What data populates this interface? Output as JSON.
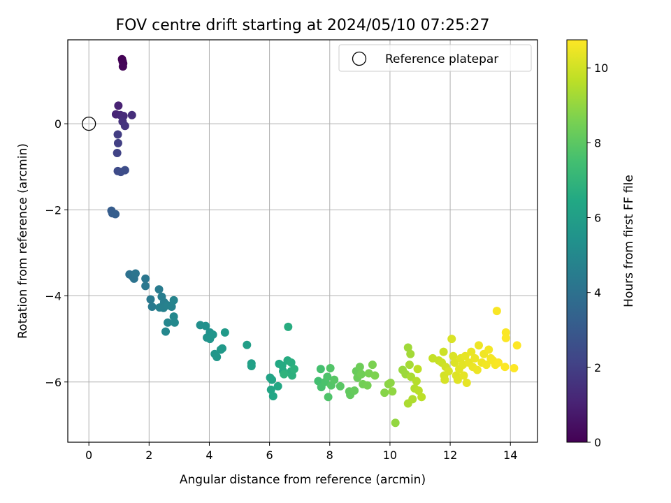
{
  "chart_data": {
    "type": "scatter",
    "title": "FOV centre drift starting at 2024/05/10 07:25:27",
    "xlabel": "Angular distance from reference (arcmin)",
    "ylabel": "Rotation from reference (arcmin)",
    "colorbar_label": "Hours from first FF file",
    "xlim": [
      -0.7,
      14.9
    ],
    "ylim": [
      -7.4,
      1.95
    ],
    "clim": [
      0,
      10.75
    ],
    "x_ticks": [
      0,
      2,
      4,
      6,
      8,
      10,
      12,
      14
    ],
    "y_ticks": [
      -6,
      -4,
      -2,
      0
    ],
    "colorbar_ticks": [
      0,
      2,
      4,
      6,
      8,
      10
    ],
    "grid": true,
    "colormap": "viridis",
    "legend": {
      "position": "top-right",
      "entries": [
        "Reference platepar"
      ]
    },
    "reference_point": {
      "x": 0,
      "y": 0
    },
    "points": [
      {
        "x": 1.1,
        "y": 1.5,
        "t": 0.0
      },
      {
        "x": 1.12,
        "y": 1.45,
        "t": 0.05
      },
      {
        "x": 1.14,
        "y": 1.4,
        "t": 0.1
      },
      {
        "x": 1.13,
        "y": 1.33,
        "t": 0.15
      },
      {
        "x": 0.98,
        "y": 0.42,
        "t": 1.0
      },
      {
        "x": 0.9,
        "y": 0.22,
        "t": 1.1
      },
      {
        "x": 1.05,
        "y": 0.2,
        "t": 1.2
      },
      {
        "x": 1.15,
        "y": 0.18,
        "t": 1.3
      },
      {
        "x": 1.43,
        "y": 0.2,
        "t": 1.4
      },
      {
        "x": 1.12,
        "y": 0.05,
        "t": 1.5
      },
      {
        "x": 1.2,
        "y": -0.05,
        "t": 1.6
      },
      {
        "x": 0.96,
        "y": -0.25,
        "t": 1.9
      },
      {
        "x": 0.97,
        "y": -0.45,
        "t": 2.0
      },
      {
        "x": 0.94,
        "y": -0.68,
        "t": 2.1
      },
      {
        "x": 0.96,
        "y": -1.1,
        "t": 2.4
      },
      {
        "x": 1.06,
        "y": -1.12,
        "t": 2.45
      },
      {
        "x": 1.2,
        "y": -1.08,
        "t": 2.5
      },
      {
        "x": 0.75,
        "y": -2.02,
        "t": 3.1
      },
      {
        "x": 0.78,
        "y": -2.08,
        "t": 3.15
      },
      {
        "x": 0.88,
        "y": -2.1,
        "t": 3.2
      },
      {
        "x": 1.35,
        "y": -3.5,
        "t": 4.0
      },
      {
        "x": 1.45,
        "y": -3.55,
        "t": 4.05
      },
      {
        "x": 1.5,
        "y": -3.6,
        "t": 4.1
      },
      {
        "x": 1.55,
        "y": -3.48,
        "t": 4.15
      },
      {
        "x": 1.88,
        "y": -3.6,
        "t": 4.2
      },
      {
        "x": 1.88,
        "y": -3.77,
        "t": 4.25
      },
      {
        "x": 2.05,
        "y": -4.08,
        "t": 4.35
      },
      {
        "x": 2.1,
        "y": -4.25,
        "t": 4.4
      },
      {
        "x": 2.33,
        "y": -3.85,
        "t": 4.45
      },
      {
        "x": 2.42,
        "y": -4.02,
        "t": 4.5
      },
      {
        "x": 2.5,
        "y": -4.15,
        "t": 4.55
      },
      {
        "x": 2.35,
        "y": -4.27,
        "t": 4.6
      },
      {
        "x": 2.48,
        "y": -4.28,
        "t": 4.65
      },
      {
        "x": 2.62,
        "y": -4.22,
        "t": 4.7
      },
      {
        "x": 2.75,
        "y": -4.25,
        "t": 4.75
      },
      {
        "x": 2.82,
        "y": -4.1,
        "t": 4.8
      },
      {
        "x": 2.62,
        "y": -4.62,
        "t": 4.9
      },
      {
        "x": 2.55,
        "y": -4.83,
        "t": 4.95
      },
      {
        "x": 2.82,
        "y": -4.48,
        "t": 5.0
      },
      {
        "x": 2.85,
        "y": -4.62,
        "t": 5.05
      },
      {
        "x": 3.7,
        "y": -4.68,
        "t": 5.3
      },
      {
        "x": 3.88,
        "y": -4.7,
        "t": 5.35
      },
      {
        "x": 4.02,
        "y": -4.85,
        "t": 5.4
      },
      {
        "x": 3.92,
        "y": -4.97,
        "t": 5.45
      },
      {
        "x": 4.02,
        "y": -5.0,
        "t": 5.5
      },
      {
        "x": 4.12,
        "y": -4.9,
        "t": 5.55
      },
      {
        "x": 4.18,
        "y": -5.35,
        "t": 5.6
      },
      {
        "x": 4.25,
        "y": -5.42,
        "t": 5.65
      },
      {
        "x": 4.38,
        "y": -5.25,
        "t": 5.7
      },
      {
        "x": 4.43,
        "y": -5.22,
        "t": 5.75
      },
      {
        "x": 4.52,
        "y": -4.85,
        "t": 5.8
      },
      {
        "x": 5.25,
        "y": -5.14,
        "t": 6.0
      },
      {
        "x": 5.4,
        "y": -5.57,
        "t": 6.05
      },
      {
        "x": 5.4,
        "y": -5.63,
        "t": 6.1
      },
      {
        "x": 6.02,
        "y": -5.9,
        "t": 6.2
      },
      {
        "x": 6.08,
        "y": -5.95,
        "t": 6.25
      },
      {
        "x": 6.05,
        "y": -6.18,
        "t": 6.3
      },
      {
        "x": 6.12,
        "y": -6.33,
        "t": 6.35
      },
      {
        "x": 6.28,
        "y": -6.1,
        "t": 6.4
      },
      {
        "x": 6.32,
        "y": -5.58,
        "t": 6.45
      },
      {
        "x": 6.45,
        "y": -5.75,
        "t": 6.5
      },
      {
        "x": 6.42,
        "y": -5.62,
        "t": 6.55
      },
      {
        "x": 6.6,
        "y": -5.5,
        "t": 6.6
      },
      {
        "x": 6.62,
        "y": -4.72,
        "t": 6.65
      },
      {
        "x": 6.72,
        "y": -5.55,
        "t": 6.7
      },
      {
        "x": 6.72,
        "y": -5.75,
        "t": 6.75
      },
      {
        "x": 6.75,
        "y": -5.85,
        "t": 6.8
      },
      {
        "x": 6.82,
        "y": -5.7,
        "t": 6.85
      },
      {
        "x": 6.48,
        "y": -5.82,
        "t": 6.9
      },
      {
        "x": 7.62,
        "y": -5.98,
        "t": 7.5
      },
      {
        "x": 7.7,
        "y": -5.7,
        "t": 7.55
      },
      {
        "x": 7.72,
        "y": -6.12,
        "t": 7.6
      },
      {
        "x": 7.85,
        "y": -6.0,
        "t": 7.65
      },
      {
        "x": 7.92,
        "y": -5.88,
        "t": 7.7
      },
      {
        "x": 7.95,
        "y": -6.35,
        "t": 7.75
      },
      {
        "x": 8.02,
        "y": -5.68,
        "t": 7.8
      },
      {
        "x": 8.05,
        "y": -6.08,
        "t": 7.85
      },
      {
        "x": 8.15,
        "y": -5.95,
        "t": 7.9
      },
      {
        "x": 8.35,
        "y": -6.1,
        "t": 7.95
      },
      {
        "x": 8.65,
        "y": -6.22,
        "t": 8.1
      },
      {
        "x": 8.68,
        "y": -6.3,
        "t": 8.15
      },
      {
        "x": 8.82,
        "y": -6.2,
        "t": 8.2
      },
      {
        "x": 8.88,
        "y": -5.75,
        "t": 8.25
      },
      {
        "x": 8.92,
        "y": -5.9,
        "t": 8.3
      },
      {
        "x": 9.0,
        "y": -5.65,
        "t": 8.35
      },
      {
        "x": 9.05,
        "y": -5.82,
        "t": 8.4
      },
      {
        "x": 9.1,
        "y": -6.05,
        "t": 8.45
      },
      {
        "x": 9.25,
        "y": -6.08,
        "t": 8.5
      },
      {
        "x": 9.3,
        "y": -5.8,
        "t": 8.55
      },
      {
        "x": 9.42,
        "y": -5.6,
        "t": 8.6
      },
      {
        "x": 9.5,
        "y": -5.85,
        "t": 8.65
      },
      {
        "x": 9.82,
        "y": -6.25,
        "t": 8.8
      },
      {
        "x": 9.95,
        "y": -6.05,
        "t": 8.85
      },
      {
        "x": 10.02,
        "y": -6.02,
        "t": 8.9
      },
      {
        "x": 10.08,
        "y": -6.22,
        "t": 8.95
      },
      {
        "x": 10.18,
        "y": -6.95,
        "t": 9.0
      },
      {
        "x": 10.42,
        "y": -5.72,
        "t": 9.1
      },
      {
        "x": 10.52,
        "y": -5.82,
        "t": 9.15
      },
      {
        "x": 10.6,
        "y": -5.2,
        "t": 9.2
      },
      {
        "x": 10.68,
        "y": -5.35,
        "t": 9.25
      },
      {
        "x": 10.65,
        "y": -5.6,
        "t": 9.3
      },
      {
        "x": 10.7,
        "y": -5.88,
        "t": 9.35
      },
      {
        "x": 10.6,
        "y": -6.5,
        "t": 9.4
      },
      {
        "x": 10.75,
        "y": -6.4,
        "t": 9.45
      },
      {
        "x": 10.82,
        "y": -6.15,
        "t": 9.5
      },
      {
        "x": 10.88,
        "y": -5.98,
        "t": 9.55
      },
      {
        "x": 10.95,
        "y": -6.2,
        "t": 9.6
      },
      {
        "x": 11.05,
        "y": -6.35,
        "t": 9.65
      },
      {
        "x": 10.92,
        "y": -5.7,
        "t": 9.7
      },
      {
        "x": 11.42,
        "y": -5.45,
        "t": 9.8
      },
      {
        "x": 11.62,
        "y": -5.5,
        "t": 9.85
      },
      {
        "x": 11.72,
        "y": -5.55,
        "t": 9.9
      },
      {
        "x": 11.78,
        "y": -5.3,
        "t": 9.95
      },
      {
        "x": 11.85,
        "y": -5.65,
        "t": 10.0
      },
      {
        "x": 11.8,
        "y": -5.85,
        "t": 10.05
      },
      {
        "x": 11.82,
        "y": -5.95,
        "t": 10.1
      },
      {
        "x": 11.95,
        "y": -5.75,
        "t": 10.12
      },
      {
        "x": 12.05,
        "y": -5.0,
        "t": 10.15
      },
      {
        "x": 12.1,
        "y": -5.4,
        "t": 10.18
      },
      {
        "x": 12.15,
        "y": -5.55,
        "t": 10.2
      },
      {
        "x": 12.2,
        "y": -5.85,
        "t": 10.22
      },
      {
        "x": 12.25,
        "y": -5.95,
        "t": 10.25
      },
      {
        "x": 12.3,
        "y": -5.7,
        "t": 10.28
      },
      {
        "x": 12.35,
        "y": -5.45,
        "t": 10.3
      },
      {
        "x": 12.42,
        "y": -5.6,
        "t": 10.32
      },
      {
        "x": 12.45,
        "y": -5.85,
        "t": 10.34
      },
      {
        "x": 12.55,
        "y": -6.02,
        "t": 10.36
      },
      {
        "x": 12.5,
        "y": -5.4,
        "t": 10.38
      },
      {
        "x": 12.62,
        "y": -5.55,
        "t": 10.4
      },
      {
        "x": 12.7,
        "y": -5.3,
        "t": 10.42
      },
      {
        "x": 12.75,
        "y": -5.65,
        "t": 10.44
      },
      {
        "x": 12.82,
        "y": -5.45,
        "t": 10.46
      },
      {
        "x": 12.9,
        "y": -5.72,
        "t": 10.48
      },
      {
        "x": 12.95,
        "y": -5.15,
        "t": 10.5
      },
      {
        "x": 13.05,
        "y": -5.55,
        "t": 10.52
      },
      {
        "x": 13.12,
        "y": -5.35,
        "t": 10.54
      },
      {
        "x": 13.2,
        "y": -5.6,
        "t": 10.56
      },
      {
        "x": 13.28,
        "y": -5.25,
        "t": 10.58
      },
      {
        "x": 13.35,
        "y": -5.45,
        "t": 10.6
      },
      {
        "x": 13.42,
        "y": -5.5,
        "t": 10.62
      },
      {
        "x": 13.5,
        "y": -5.6,
        "t": 10.64
      },
      {
        "x": 13.55,
        "y": -4.35,
        "t": 10.66
      },
      {
        "x": 13.6,
        "y": -5.55,
        "t": 10.68
      },
      {
        "x": 13.85,
        "y": -4.85,
        "t": 10.7
      },
      {
        "x": 13.85,
        "y": -4.98,
        "t": 10.72
      },
      {
        "x": 13.82,
        "y": -5.65,
        "t": 10.74
      },
      {
        "x": 14.12,
        "y": -5.68,
        "t": 10.75
      },
      {
        "x": 14.22,
        "y": -5.15,
        "t": 10.75
      }
    ]
  }
}
